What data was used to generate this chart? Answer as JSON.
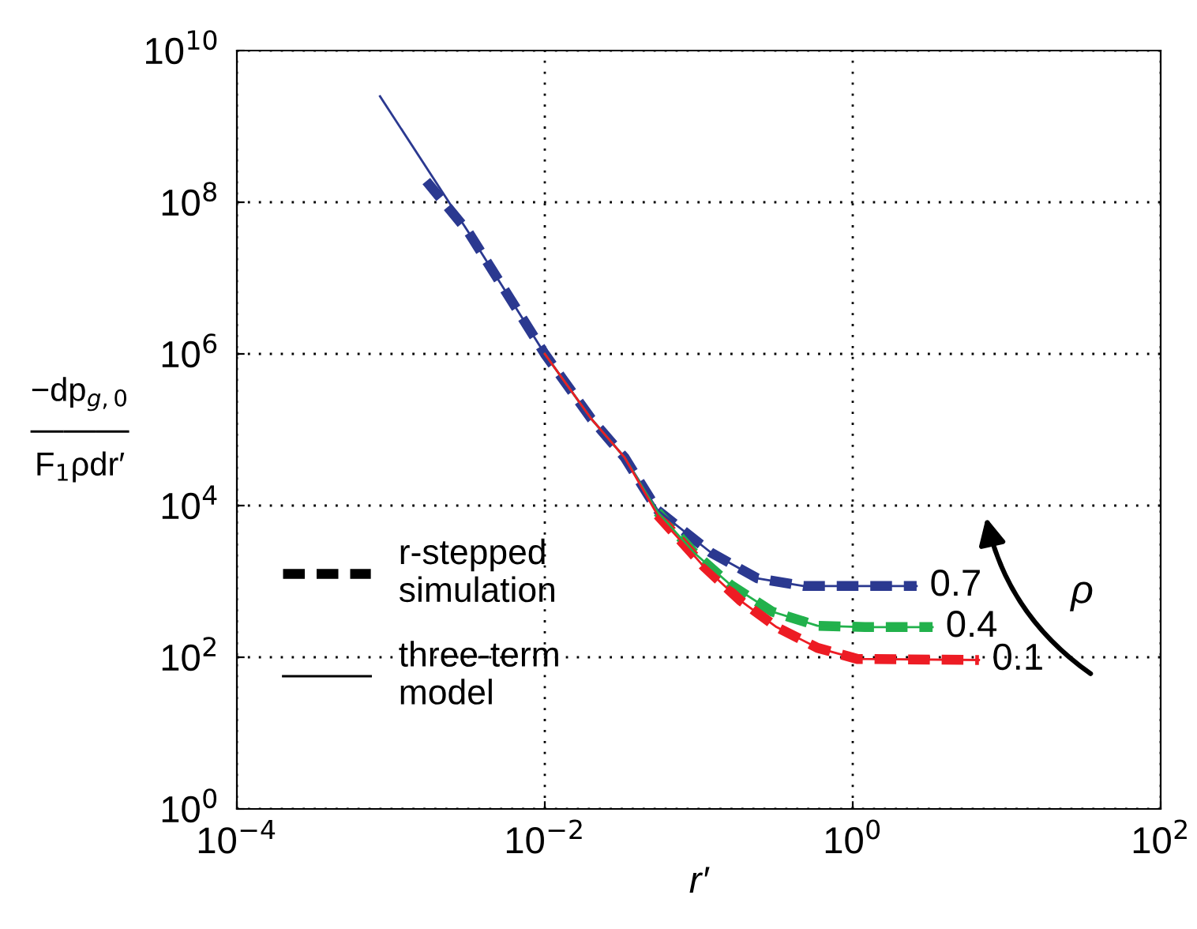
{
  "chart_data": {
    "type": "line",
    "xlabel": "r′",
    "ylabel": "−dp$_{g,0}$\n―――\nF$_{1}$ρdr′",
    "log": "xy",
    "xlim": [
      0.0001,
      100
    ],
    "ylim": [
      1,
      10000000000
    ],
    "xticks": [
      {
        "value": 0.0001,
        "label": "10$^{−4}$"
      },
      {
        "value": 0.01,
        "label": "10$^{−2}$"
      },
      {
        "value": 1,
        "label": "10$^{0}$"
      },
      {
        "value": 100,
        "label": "10$^{2}$"
      }
    ],
    "yticks": [
      {
        "value": 1,
        "label": "10$^{0}$"
      },
      {
        "value": 100,
        "label": "10$^{2}$"
      },
      {
        "value": 10000,
        "label": "10$^{4}$"
      },
      {
        "value": 1000000,
        "label": "10$^{6}$"
      },
      {
        "value": 100000000,
        "label": "10$^{8}$"
      },
      {
        "value": 10000000000,
        "label": "10$^{10}$"
      }
    ],
    "grid": true,
    "annotations": [
      "r-stepped\nsimulation",
      "three-term\nmodel",
      "ρ",
      {
        "text": "0.1",
        "x": 6.6,
        "y": 92
      },
      {
        "text": "0.4",
        "x": 3.3,
        "y": 250
      },
      {
        "text": "0.7",
        "x": 2.6,
        "y": 870
      }
    ],
    "series": [
      {
        "color": "#ed1c24",
        "line_style": "dashed",
        "x": [
          0.054,
          0.107,
          0.186,
          0.32,
          0.59,
          1.07,
          6.6
        ],
        "values": [
          7500,
          1600,
          560,
          250,
          133,
          95,
          92
        ]
      },
      {
        "color": "#22b14c",
        "line_style": "dashed",
        "x": [
          0.054,
          0.093,
          0.16,
          0.3,
          0.59,
          1.2,
          3.3
        ],
        "values": [
          8200,
          2400,
          910,
          400,
          260,
          250,
          250
        ]
      },
      {
        "color": "#2b3990",
        "line_style": "dashed",
        "x": [
          0.0017,
          0.0032,
          0.01,
          0.02,
          0.033,
          0.054,
          0.12,
          0.24,
          0.48,
          0.93,
          2.6
        ],
        "values": [
          190000000,
          40000000,
          1000000,
          140000,
          43000,
          8700,
          2400,
          1100,
          870,
          870,
          870
        ]
      },
      {
        "color": "#ed1c24",
        "line_style": "solid",
        "x": [
          0.01,
          0.02,
          0.033,
          0.054,
          0.107,
          0.186,
          0.32,
          0.59,
          1.07,
          6.6
        ],
        "values": [
          1000000,
          140000,
          43000,
          7500,
          1600,
          560,
          250,
          133,
          95,
          92
        ]
      },
      {
        "color": "#22b14c",
        "line_style": "solid",
        "x": [
          0.01,
          0.02,
          0.033,
          0.054,
          0.093,
          0.16,
          0.3,
          0.59,
          1.2,
          3.3
        ],
        "values": [
          1000000,
          140000,
          43000,
          8200,
          2400,
          910,
          400,
          260,
          250,
          250
        ]
      },
      {
        "color": "#2b3990",
        "line_style": "solid",
        "x": [
          0.00085,
          0.0032,
          0.01,
          0.02,
          0.033,
          0.054,
          0.12,
          0.24,
          0.48,
          0.93,
          2.6
        ],
        "values": [
          2500000000,
          40000000,
          1000000,
          140000,
          43000,
          8700,
          2400,
          1100,
          870,
          870,
          870
        ]
      }
    ]
  }
}
